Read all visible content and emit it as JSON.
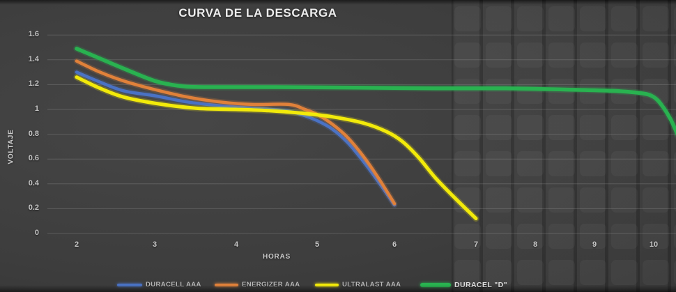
{
  "title": "CURVA DE LA DESCARGA",
  "axes": {
    "x_label": "HORAS",
    "y_label": "VOLTAJE",
    "x_ticks": [
      "2",
      "3",
      "4",
      "5",
      "6",
      "7",
      "8",
      "9",
      "10"
    ],
    "y_ticks": [
      "0",
      "0.2",
      "0.4",
      "0.6",
      "0.8",
      "1",
      "1.2",
      "1.4",
      "1.6"
    ]
  },
  "legend": [
    {
      "label": "DURACELL AAA",
      "color": "#4a72c4"
    },
    {
      "label": "ENERGIZER AAA",
      "color": "#e0813a"
    },
    {
      "label": "ULTRALAST AAA",
      "color": "#f2ea0a"
    },
    {
      "label": "DURACEL \"D\"",
      "color": "#29b250"
    }
  ],
  "chart_data": {
    "type": "line",
    "title": "CURVA DE LA DESCARGA",
    "xlabel": "HORAS",
    "ylabel": "VOLTAJE",
    "xlim": [
      2,
      10.4
    ],
    "ylim": [
      0,
      1.6
    ],
    "x_ticks": [
      2,
      3,
      4,
      5,
      6,
      7,
      8,
      9,
      10
    ],
    "y_tick_step": 0.2,
    "grid": "horizontal",
    "legend_position": "bottom",
    "series": [
      {
        "name": "DURACELL AAA",
        "color": "#4a72c4",
        "width": 4.5,
        "points": [
          [
            2,
            1.3
          ],
          [
            2.3,
            1.22
          ],
          [
            2.6,
            1.15
          ],
          [
            3,
            1.11
          ],
          [
            3.4,
            1.06
          ],
          [
            3.8,
            1.03
          ],
          [
            4.2,
            1.01
          ],
          [
            4.6,
            0.99
          ],
          [
            4.8,
            0.96
          ],
          [
            5,
            0.91
          ],
          [
            5.2,
            0.84
          ],
          [
            5.4,
            0.73
          ],
          [
            5.6,
            0.58
          ],
          [
            5.8,
            0.41
          ],
          [
            6,
            0.23
          ]
        ]
      },
      {
        "name": "ENERGIZER AAA",
        "color": "#e0813a",
        "width": 4.5,
        "points": [
          [
            2,
            1.39
          ],
          [
            2.3,
            1.3
          ],
          [
            2.6,
            1.23
          ],
          [
            3,
            1.16
          ],
          [
            3.4,
            1.1
          ],
          [
            3.8,
            1.06
          ],
          [
            4.2,
            1.04
          ],
          [
            4.65,
            1.04
          ],
          [
            4.85,
            1.0
          ],
          [
            5,
            0.96
          ],
          [
            5.2,
            0.88
          ],
          [
            5.4,
            0.77
          ],
          [
            5.6,
            0.62
          ],
          [
            5.8,
            0.44
          ],
          [
            6,
            0.24
          ]
        ]
      },
      {
        "name": "ULTRALAST AAA",
        "color": "#f2ea0a",
        "width": 5,
        "points": [
          [
            2,
            1.26
          ],
          [
            2.3,
            1.17
          ],
          [
            2.6,
            1.1
          ],
          [
            3,
            1.05
          ],
          [
            3.5,
            1.01
          ],
          [
            4,
            1.0
          ],
          [
            4.4,
            0.99
          ],
          [
            4.8,
            0.97
          ],
          [
            5.2,
            0.94
          ],
          [
            5.6,
            0.89
          ],
          [
            5.9,
            0.82
          ],
          [
            6.1,
            0.74
          ],
          [
            6.3,
            0.61
          ],
          [
            6.5,
            0.45
          ],
          [
            6.75,
            0.28
          ],
          [
            7,
            0.12
          ]
        ]
      },
      {
        "name": "DURACEL \"D\"",
        "color": "#29b250",
        "width": 5.5,
        "points": [
          [
            2,
            1.49
          ],
          [
            2.3,
            1.41
          ],
          [
            2.6,
            1.33
          ],
          [
            3,
            1.23
          ],
          [
            3.3,
            1.19
          ],
          [
            3.6,
            1.18
          ],
          [
            4.5,
            1.18
          ],
          [
            5.5,
            1.175
          ],
          [
            6.5,
            1.17
          ],
          [
            7.5,
            1.17
          ],
          [
            8.5,
            1.16
          ],
          [
            9.3,
            1.15
          ],
          [
            9.8,
            1.13
          ],
          [
            10,
            1.1
          ],
          [
            10.15,
            1.03
          ],
          [
            10.3,
            0.92
          ],
          [
            10.42,
            0.8
          ]
        ]
      }
    ]
  }
}
